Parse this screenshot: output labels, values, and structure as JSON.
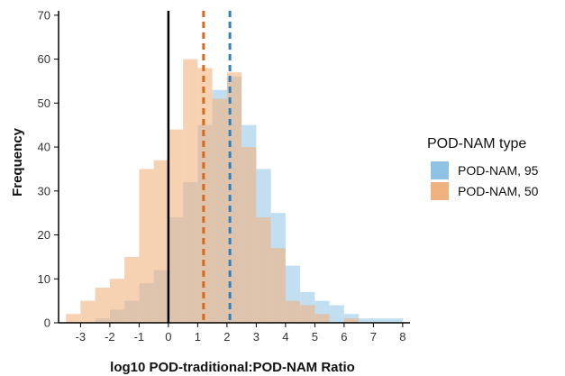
{
  "chart_data": {
    "type": "bar",
    "xlabel": "log10 POD-traditional:POD-NAM Ratio",
    "ylabel": "Frequency",
    "xlim": [
      -3.75,
      8.25
    ],
    "ylim": [
      0,
      71
    ],
    "x_ticks": [
      -3,
      -2,
      -1,
      0,
      1,
      2,
      3,
      4,
      5,
      6,
      7,
      8
    ],
    "y_ticks": [
      0,
      10,
      20,
      30,
      40,
      50,
      60,
      70
    ],
    "bin_width": 0.5,
    "bin_starts": [
      -3.5,
      -3.0,
      -2.5,
      -2.0,
      -1.5,
      -1.0,
      -0.5,
      0.0,
      0.5,
      1.0,
      1.5,
      2.0,
      2.5,
      3.0,
      3.5,
      4.0,
      4.5,
      5.0,
      5.5,
      6.0,
      6.5,
      7.0,
      7.5
    ],
    "series": [
      {
        "name": "POD-NAM, 95",
        "color": "#8fc3e6",
        "values": [
          0,
          0,
          1,
          3,
          5,
          9,
          12,
          24,
          32,
          45,
          53,
          56,
          45,
          35,
          25,
          13,
          7,
          5,
          4,
          2,
          1,
          1,
          1
        ]
      },
      {
        "name": "POD-NAM, 50",
        "color": "#f0b27f",
        "values": [
          2,
          5,
          8,
          10,
          15,
          35,
          37,
          44,
          60,
          58,
          51,
          57,
          40,
          24,
          17,
          5,
          4,
          2,
          0,
          1,
          0,
          0,
          0
        ]
      }
    ],
    "vlines": [
      {
        "x": 0,
        "color": "#000000",
        "style": "solid"
      },
      {
        "x": 1.2,
        "color": "#d86a1a",
        "style": "dashed"
      },
      {
        "x": 2.1,
        "color": "#2f7fc1",
        "style": "dashed"
      }
    ],
    "legend": {
      "title": "POD-NAM type",
      "placement": "right"
    }
  }
}
